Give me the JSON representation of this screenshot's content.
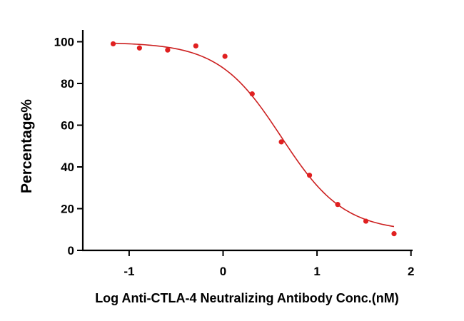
{
  "chart_data": {
    "type": "scatter",
    "title": "",
    "xlabel": "Log Anti-CTLA-4 Neutralizing Antibody Conc.(nM)",
    "ylabel": "Percentage%",
    "xlim": [
      -1.5,
      2
    ],
    "ylim": [
      0,
      105
    ],
    "xticks": [
      -1,
      0,
      1,
      2
    ],
    "xtick_labels": [
      "-1",
      "0",
      "1",
      "2"
    ],
    "yticks": [
      0,
      20,
      40,
      60,
      80,
      100
    ],
    "ytick_labels": [
      "0",
      "20",
      "40",
      "60",
      "80",
      "100"
    ],
    "grid": false,
    "legend": "none",
    "series": [
      {
        "type": "scatter",
        "color": "#e02020",
        "x": [
          -1.17,
          -0.89,
          -0.59,
          -0.29,
          0.02,
          0.31,
          0.62,
          0.92,
          1.22,
          1.52,
          1.82
        ],
        "y": [
          99,
          97,
          96,
          98,
          93,
          75,
          52,
          36,
          22,
          14,
          8
        ]
      },
      {
        "type": "line",
        "fit": "four-parameter logistic",
        "color": "#cc1f1f",
        "x_range": [
          -1.17,
          1.82
        ],
        "top": 99.7,
        "bottom": 9,
        "log_ic50": 0.62,
        "hill_slope": 1.3
      }
    ]
  }
}
